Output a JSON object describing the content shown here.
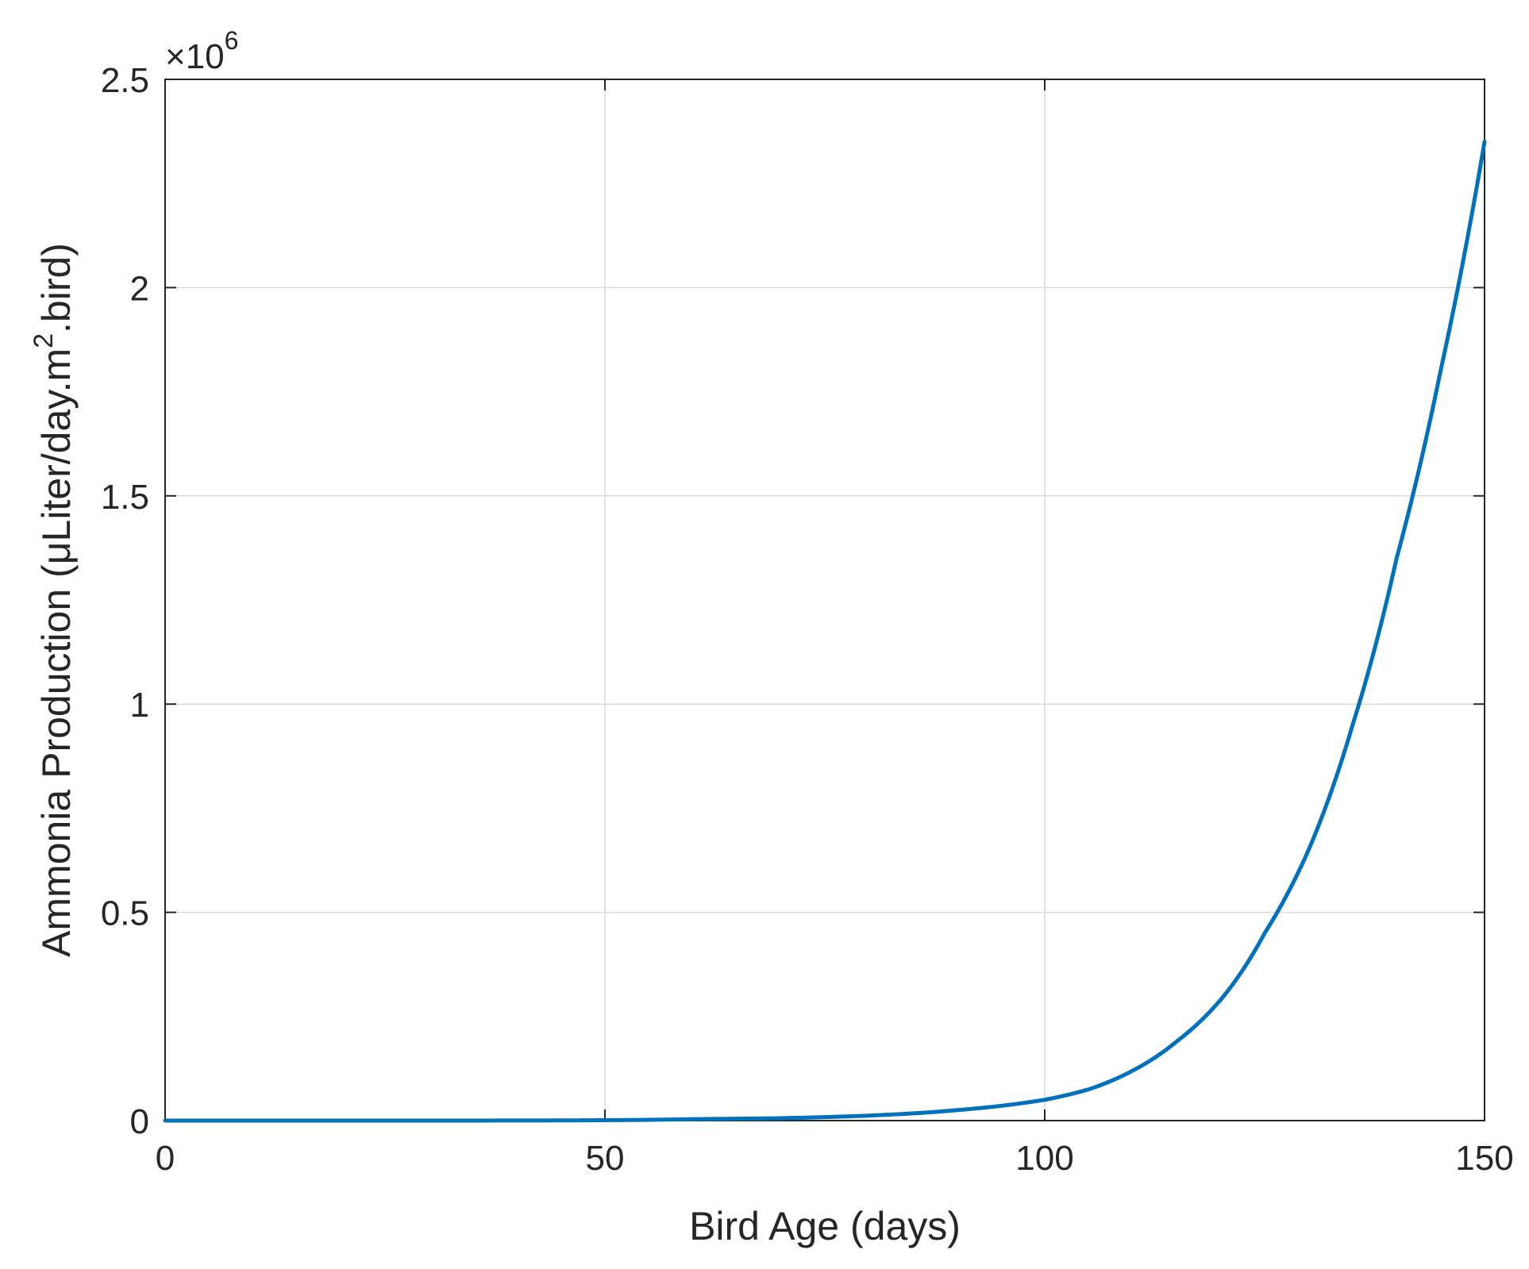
{
  "chart_data": {
    "type": "line",
    "title": "",
    "xlabel": "Bird Age (days)",
    "ylabel_main": "Ammonia Production (μLiter/day.m",
    "ylabel_sup": "2",
    "ylabel_tail": ".bird)",
    "y_exponent_prefix": "×10",
    "y_exponent_power": "6",
    "xlim": [
      0,
      150
    ],
    "ylim": [
      0,
      2500000
    ],
    "xticks": [
      0,
      50,
      100,
      150
    ],
    "xtick_labels": [
      "0",
      "50",
      "100",
      "150"
    ],
    "yticks": [
      0,
      500000,
      1000000,
      1500000,
      2000000,
      2500000
    ],
    "ytick_labels": [
      "0",
      "0.5",
      "1",
      "1.5",
      "2",
      "2.5"
    ],
    "grid": true,
    "series": [
      {
        "color": "#0072BD",
        "x": [
          0,
          10,
          20,
          30,
          40,
          50,
          60,
          70,
          80,
          90,
          100,
          105,
          110,
          115,
          120,
          125,
          130,
          135,
          140,
          145,
          150
        ],
        "y": [
          1,
          2,
          8,
          40,
          200,
          1000,
          3500,
          5800,
          12000,
          25000,
          50000,
          75000,
          120000,
          190000,
          290000,
          450000,
          650000,
          950000,
          1350000,
          1800000,
          2350000
        ]
      }
    ]
  }
}
